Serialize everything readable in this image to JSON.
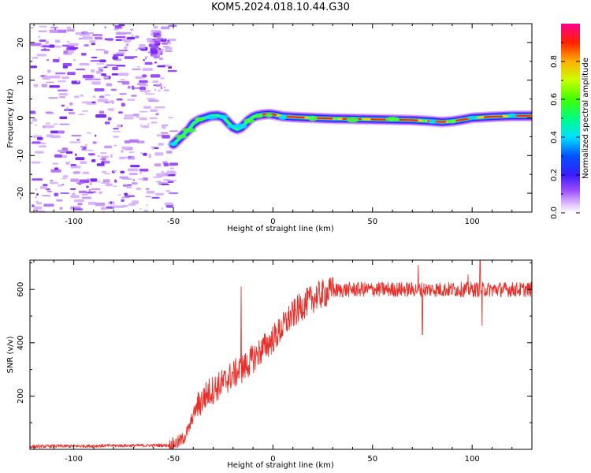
{
  "figure": {
    "title": "KOM5.2024.018.10.44.G30"
  },
  "chart_data": [
    {
      "type": "heatmap",
      "xlabel": "Height of straight line (km)",
      "ylabel": "Frequency (Hz)",
      "xlim": [
        -122,
        130
      ],
      "ylim": [
        -25,
        25
      ],
      "xticks": [
        -100,
        -50,
        0,
        50,
        100
      ],
      "yticks": [
        -20,
        -10,
        0,
        10,
        20
      ],
      "colorbar": {
        "label": "Normalized spectral amplitude",
        "range": [
          0,
          1
        ],
        "ticks": [
          "0.0",
          "0.2",
          "0.4",
          "0.6",
          "0.8"
        ],
        "colormap": "rainbow",
        "background_below": "#ffffff"
      },
      "trace": {
        "x": [
          -50,
          -48,
          -46,
          -44,
          -42,
          -40,
          -37,
          -34,
          -31,
          -28,
          -25,
          -22,
          -20,
          -18,
          -16,
          -14,
          -12,
          -10,
          -8,
          -5,
          -2,
          0,
          5,
          10,
          20,
          30,
          40,
          50,
          60,
          70,
          80,
          85,
          90,
          95,
          100,
          110,
          120,
          130
        ],
        "y": [
          -7,
          -6,
          -5,
          -4,
          -3,
          -1.5,
          -0.5,
          0,
          0.5,
          0.6,
          0.2,
          -1.5,
          -2.5,
          -3,
          -2.6,
          -1.6,
          -0.5,
          0.2,
          0.6,
          0.9,
          1.0,
          0.9,
          0.4,
          0.2,
          0,
          -0.2,
          -0.3,
          -0.4,
          -0.5,
          -0.6,
          -0.9,
          -1.1,
          -0.9,
          -0.5,
          0,
          0.3,
          0.5,
          0.5
        ]
      },
      "noise_region_x": [
        -122,
        -50
      ]
    },
    {
      "type": "line",
      "xlabel": "Height of straight line (km)",
      "ylabel": "SNR (v/v)",
      "xlim": [
        -122,
        130
      ],
      "ylim": [
        0,
        710
      ],
      "xticks": [
        -100,
        -50,
        0,
        50,
        100
      ],
      "yticks": [
        200,
        400,
        600
      ],
      "color": "#e8302a",
      "x": [
        -122,
        -110,
        -100,
        -90,
        -80,
        -70,
        -60,
        -52,
        -48,
        -45,
        -42,
        -40,
        -38,
        -36,
        -34,
        -32,
        -30,
        -28,
        -26,
        -24,
        -22,
        -20,
        -18,
        -16,
        -14,
        -12,
        -10,
        -8,
        -6,
        -4,
        -2,
        0,
        2,
        4,
        6,
        8,
        10,
        12,
        14,
        16,
        18,
        20,
        22,
        24,
        26,
        28,
        30,
        35,
        40,
        45,
        50,
        55,
        60,
        65,
        70,
        75,
        80,
        85,
        90,
        95,
        100,
        105,
        110,
        115,
        120,
        125,
        130
      ],
      "y": [
        10,
        12,
        12,
        13,
        14,
        14,
        15,
        15,
        25,
        40,
        80,
        130,
        160,
        180,
        200,
        215,
        225,
        235,
        245,
        255,
        270,
        280,
        290,
        300,
        310,
        325,
        340,
        355,
        370,
        385,
        400,
        415,
        430,
        450,
        470,
        490,
        505,
        520,
        535,
        545,
        555,
        565,
        575,
        580,
        585,
        590,
        595,
        598,
        600,
        600,
        600,
        600,
        600,
        600,
        600,
        600,
        600,
        600,
        600,
        600,
        600,
        600,
        600,
        600,
        600,
        600,
        600
      ],
      "spikes": [
        {
          "x": -16,
          "y": 610
        },
        {
          "x": 30,
          "y": 645
        },
        {
          "x": 73,
          "y": 690
        },
        {
          "x": 75,
          "y": 430
        },
        {
          "x": 98,
          "y": 655
        },
        {
          "x": 104,
          "y": 710
        },
        {
          "x": 105,
          "y": 465
        }
      ]
    }
  ]
}
